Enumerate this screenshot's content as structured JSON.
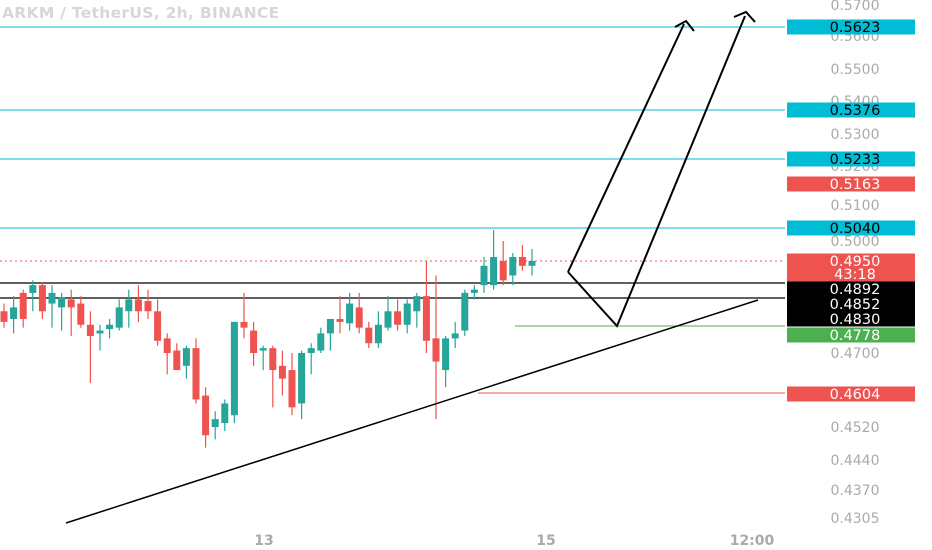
{
  "header": {
    "title": "ARKM / TetherUS, 2h, BINANCE"
  },
  "colors": {
    "up": "#26a69a",
    "down": "#ef5350",
    "level": "#00bcd4",
    "green": "#4caf50",
    "black": "#000000"
  },
  "chart_data": {
    "type": "candlestick",
    "title": "ARKM / TetherUS, 2h, BINANCE",
    "price_ticks": [
      "0.5700",
      "0.5600",
      "0.5500",
      "0.5400",
      "0.5300",
      "0.5200",
      "0.5100",
      "0.5000",
      "0.4700",
      "0.4520",
      "0.4440",
      "0.4370",
      "0.4305"
    ],
    "x_ticks": [
      "13",
      "15",
      "12:00"
    ],
    "price_labels": [
      {
        "text": "0.5623",
        "kind": "level"
      },
      {
        "text": "0.5376",
        "kind": "level"
      },
      {
        "text": "0.5233",
        "kind": "level"
      },
      {
        "text": "0.5163",
        "kind": "red"
      },
      {
        "text": "0.5040",
        "kind": "level"
      },
      {
        "text": "0.4950",
        "kind": "last"
      },
      {
        "text": "43:18",
        "kind": "last_timer"
      },
      {
        "text": "0.4892",
        "kind": "black"
      },
      {
        "text": "0.4852",
        "kind": "black"
      },
      {
        "text": "0.4830",
        "kind": "black"
      },
      {
        "text": "0.4778",
        "kind": "green"
      },
      {
        "text": "0.4604",
        "kind": "red"
      }
    ],
    "horizontal_levels": [
      0.5623,
      0.5376,
      0.5233,
      0.504
    ],
    "last_price": 0.495,
    "candles": [
      [
        0.484,
        0.485,
        0.48,
        0.482
      ],
      [
        0.483,
        0.487,
        0.478,
        0.4845
      ],
      [
        0.488,
        0.489,
        0.48,
        0.483
      ],
      [
        0.488,
        0.491,
        0.484,
        0.49
      ],
      [
        0.49,
        0.4905,
        0.483,
        0.484
      ],
      [
        0.485,
        0.49,
        0.48,
        0.488
      ],
      [
        0.4845,
        0.488,
        0.479,
        0.4865
      ],
      [
        0.486,
        0.489,
        0.477,
        0.4845
      ],
      [
        0.485,
        0.487,
        0.48,
        0.481
      ],
      [
        0.481,
        0.484,
        0.463,
        0.477
      ],
      [
        0.478,
        0.481,
        0.471,
        0.479
      ],
      [
        0.4795,
        0.483,
        0.476,
        0.481
      ],
      [
        0.48,
        0.486,
        0.479,
        0.4845
      ],
      [
        0.484,
        0.489,
        0.48,
        0.486
      ],
      [
        0.486,
        0.49,
        0.482,
        0.484
      ],
      [
        0.4855,
        0.489,
        0.483,
        0.484
      ],
      [
        0.484,
        0.486,
        0.473,
        0.475
      ],
      [
        0.476,
        0.478,
        0.465,
        0.47
      ],
      [
        0.471,
        0.474,
        0.466,
        0.466
      ],
      [
        0.467,
        0.473,
        0.464,
        0.472
      ],
      [
        0.472,
        0.476,
        0.458,
        0.459
      ],
      [
        0.46,
        0.462,
        0.447,
        0.45
      ],
      [
        0.452,
        0.456,
        0.449,
        0.454
      ],
      [
        0.453,
        0.459,
        0.451,
        0.458
      ],
      [
        0.455,
        0.482,
        0.453,
        0.482
      ],
      [
        0.482,
        0.488,
        0.476,
        0.48
      ],
      [
        0.479,
        0.482,
        0.467,
        0.47
      ],
      [
        0.471,
        0.473,
        0.466,
        0.472
      ],
      [
        0.472,
        0.473,
        0.457,
        0.466
      ],
      [
        0.467,
        0.471,
        0.46,
        0.464
      ],
      [
        0.466,
        0.47,
        0.455,
        0.457
      ],
      [
        0.458,
        0.471,
        0.454,
        0.47
      ],
      [
        0.47,
        0.474,
        0.465,
        0.472
      ],
      [
        0.471,
        0.48,
        0.47,
        0.478
      ],
      [
        0.478,
        0.483,
        0.471,
        0.483
      ],
      [
        0.483,
        0.487,
        0.478,
        0.482
      ],
      [
        0.4815,
        0.488,
        0.479,
        0.485
      ],
      [
        0.4845,
        0.488,
        0.478,
        0.48
      ],
      [
        0.48,
        0.482,
        0.472,
        0.474
      ],
      [
        0.474,
        0.484,
        0.472,
        0.481
      ],
      [
        0.48,
        0.487,
        0.479,
        0.484
      ],
      [
        0.484,
        0.486,
        0.479,
        0.481
      ],
      [
        0.481,
        0.486,
        0.478,
        0.485
      ],
      [
        0.484,
        0.488,
        0.48,
        0.487
      ],
      [
        0.487,
        0.495,
        0.47,
        0.475
      ],
      [
        0.476,
        0.492,
        0.454,
        0.468
      ],
      [
        0.466,
        0.477,
        0.462,
        0.476
      ],
      [
        0.476,
        0.482,
        0.472,
        0.478
      ],
      [
        0.479,
        0.489,
        0.477,
        0.488
      ],
      [
        0.488,
        0.49,
        0.486,
        0.489
      ],
      [
        0.49,
        0.496,
        0.488,
        0.494
      ],
      [
        0.49,
        0.503,
        0.489,
        0.496
      ],
      [
        0.495,
        0.5,
        0.49,
        0.491
      ],
      [
        0.492,
        0.497,
        0.49,
        0.496
      ],
      [
        0.496,
        0.499,
        0.493,
        0.494
      ],
      [
        0.494,
        0.498,
        0.492,
        0.495
      ]
    ]
  }
}
